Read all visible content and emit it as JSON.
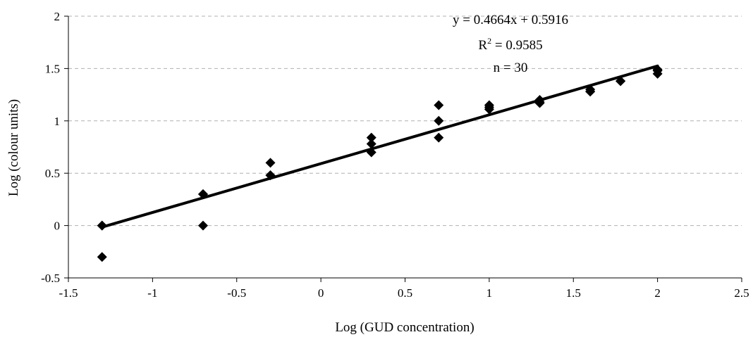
{
  "chart_data": {
    "type": "scatter",
    "title": "",
    "xlabel": "Log (GUD concentration)",
    "ylabel": "Log (colour units)",
    "xlim": [
      -1.5,
      2.5
    ],
    "ylim": [
      -0.5,
      2
    ],
    "x_ticks": [
      -1.5,
      -1,
      -0.5,
      0,
      0.5,
      1,
      1.5,
      2,
      2.5
    ],
    "x_tick_labels": [
      "-1.5",
      "-1",
      "-0.5",
      "0",
      "0.5",
      "1",
      "1.5",
      "2",
      "2.5"
    ],
    "y_ticks": [
      -0.5,
      0,
      0.5,
      1,
      1.5,
      2
    ],
    "y_tick_labels": [
      "-0.5",
      "0",
      "0.5",
      "1",
      "1.5",
      "2"
    ],
    "grid": "horizontal dashed",
    "legend": "none",
    "marker": "diamond",
    "series": [
      {
        "points": [
          [
            -1.3,
            0.0
          ],
          [
            -1.3,
            -0.3
          ],
          [
            -1.3,
            0.0
          ],
          [
            -0.7,
            0.3
          ],
          [
            -0.7,
            0.0
          ],
          [
            -0.7,
            0.3
          ],
          [
            -0.3,
            0.6
          ],
          [
            -0.3,
            0.48
          ],
          [
            -0.3,
            0.48
          ],
          [
            0.3,
            0.84
          ],
          [
            0.3,
            0.78
          ],
          [
            0.3,
            0.7
          ],
          [
            0.7,
            1.15
          ],
          [
            0.7,
            1.0
          ],
          [
            0.7,
            0.84
          ],
          [
            1.0,
            1.15
          ],
          [
            1.0,
            1.11
          ],
          [
            1.0,
            1.13
          ],
          [
            1.3,
            1.2
          ],
          [
            1.3,
            1.18
          ],
          [
            1.3,
            1.17
          ],
          [
            1.6,
            1.3
          ],
          [
            1.6,
            1.28
          ],
          [
            1.6,
            1.28
          ],
          [
            1.78,
            1.38
          ],
          [
            1.78,
            1.38
          ],
          [
            1.78,
            1.38
          ],
          [
            2.0,
            1.49
          ],
          [
            2.0,
            1.45
          ],
          [
            2.0,
            1.48
          ]
        ]
      }
    ],
    "trendline": {
      "slope": 0.4664,
      "intercept": 0.5916,
      "x_range": [
        -1.3,
        2.0
      ]
    },
    "annotations": {
      "equation": "y = 0.4664x + 0.5916",
      "r2_prefix": "R",
      "r2_sup": "2",
      "r2_suffix": " = 0.9585",
      "n": "n = 30"
    }
  }
}
